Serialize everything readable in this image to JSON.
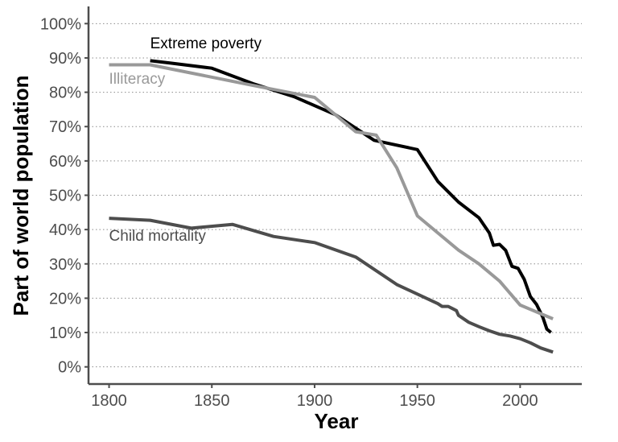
{
  "chart_data": {
    "type": "line",
    "title": "",
    "xlabel": "Year",
    "ylabel": "Part of world population",
    "xlim": [
      1790,
      2030
    ],
    "ylim": [
      -5,
      105
    ],
    "x_ticks": [
      1800,
      1850,
      1900,
      1950,
      2000
    ],
    "x_tick_labels": [
      "1800",
      "1850",
      "1900",
      "1950",
      "2000"
    ],
    "y_ticks": [
      0,
      10,
      20,
      30,
      40,
      50,
      60,
      70,
      80,
      90,
      100
    ],
    "y_tick_labels": [
      "0%",
      "10%",
      "20%",
      "30%",
      "40%",
      "50%",
      "60%",
      "70%",
      "80%",
      "90%",
      "100%"
    ],
    "grid": "horizontal dotted",
    "legend": "none (direct labels)",
    "series": [
      {
        "name": "Extreme poverty",
        "color": "#000000",
        "x": [
          1820,
          1830,
          1850,
          1870,
          1890,
          1910,
          1929,
          1950,
          1960,
          1970,
          1980,
          1985,
          1987,
          1990,
          1993,
          1996,
          1999,
          2002,
          2005,
          2008,
          2011,
          2013,
          2015
        ],
        "y": [
          89.2,
          88.5,
          87,
          82.5,
          78.7,
          73.5,
          66,
          63.3,
          54,
          48,
          43.4,
          39,
          35.4,
          35.7,
          33.9,
          29.3,
          28.7,
          25.5,
          20.5,
          18.2,
          14.5,
          11,
          10
        ]
      },
      {
        "name": "Illiteracy",
        "color": "#999999",
        "x": [
          1800,
          1820,
          1870,
          1900,
          1920,
          1930,
          1940,
          1950,
          1960,
          1970,
          1980,
          1990,
          2000,
          2016
        ],
        "y": [
          88,
          88,
          82,
          78.5,
          68.5,
          67.5,
          58,
          44,
          39,
          34,
          30,
          25,
          18,
          14
        ]
      },
      {
        "name": "Child mortality",
        "color": "#4d4d4d",
        "x": [
          1800,
          1820,
          1840,
          1860,
          1880,
          1900,
          1920,
          1940,
          1960,
          1962,
          1965,
          1967,
          1969,
          1970,
          1975,
          1980,
          1985,
          1990,
          1995,
          2000,
          2005,
          2010,
          2016
        ],
        "y": [
          43.3,
          42.7,
          40.4,
          41.5,
          38,
          36.2,
          32,
          24,
          18.4,
          17.6,
          17.6,
          17,
          16.4,
          15,
          13,
          11.7,
          10.5,
          9.5,
          9,
          8.2,
          7,
          5.5,
          4.3
        ]
      }
    ],
    "annotations": [
      {
        "text": "Extreme poverty",
        "x": 1820,
        "y": 92.8,
        "color": "#000000",
        "anchor": "start"
      },
      {
        "text": "Illiteracy",
        "x": 1800,
        "y": 82.5,
        "color": "#999999",
        "anchor": "start"
      },
      {
        "text": "Child mortality",
        "x": 1800,
        "y": 36.8,
        "color": "#4d4d4d",
        "anchor": "start"
      }
    ]
  }
}
